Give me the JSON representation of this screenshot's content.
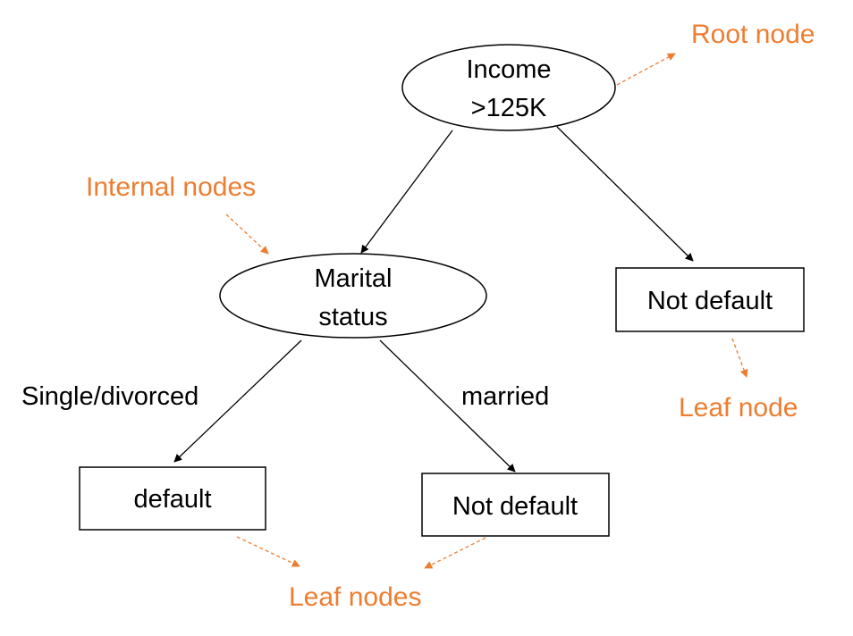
{
  "colors": {
    "annotation": "#ED7D31",
    "stroke": "#000000"
  },
  "nodes": {
    "root": {
      "line1": "Income",
      "line2": ">125K"
    },
    "internal": {
      "line1": "Marital",
      "line2": "status"
    },
    "leaf_right": {
      "label": "Not default"
    },
    "leaf_default": {
      "label": "default"
    },
    "leaf_not_default": {
      "label": "Not default"
    }
  },
  "edges": {
    "left_branch_label": "Single/divorced",
    "right_branch_label": "married"
  },
  "annotations": {
    "root": "Root node",
    "internal": "Internal nodes",
    "leaf": "Leaf node",
    "leaves": "Leaf nodes"
  }
}
